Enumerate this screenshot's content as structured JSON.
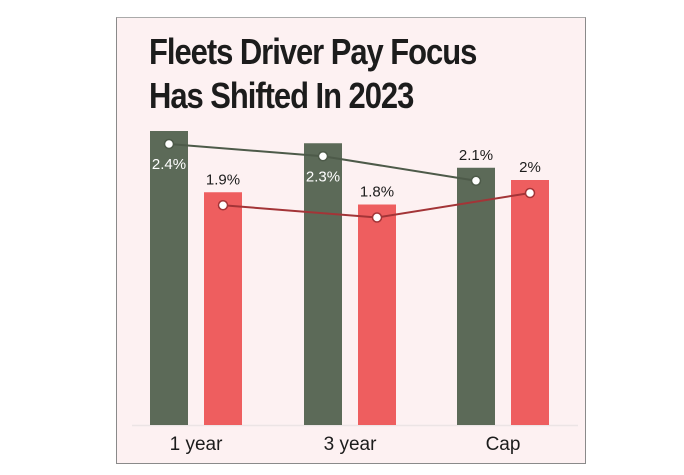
{
  "chart_data": {
    "type": "bar",
    "title_lines": [
      "Fleets Driver Pay Focus",
      "Has Shifted In 2023"
    ],
    "categories": [
      "1 year",
      "3 year",
      "Cap"
    ],
    "series": [
      {
        "name": "series-1",
        "values": [
          2.4,
          2.3,
          2.1
        ],
        "labels": [
          "2.4%",
          "2.3%",
          "2.1%"
        ],
        "color": "#5c6a58",
        "line_color": "#4d5a49"
      },
      {
        "name": "series-2",
        "values": [
          1.9,
          1.8,
          2.0
        ],
        "labels": [
          "1.9%",
          "1.8%",
          "2%"
        ],
        "color": "#ee5e5f",
        "line_color": "#a33437"
      }
    ],
    "ylim": [
      0,
      2.6
    ],
    "xlabel": "",
    "ylabel": "",
    "grid": false,
    "legend": "none"
  }
}
